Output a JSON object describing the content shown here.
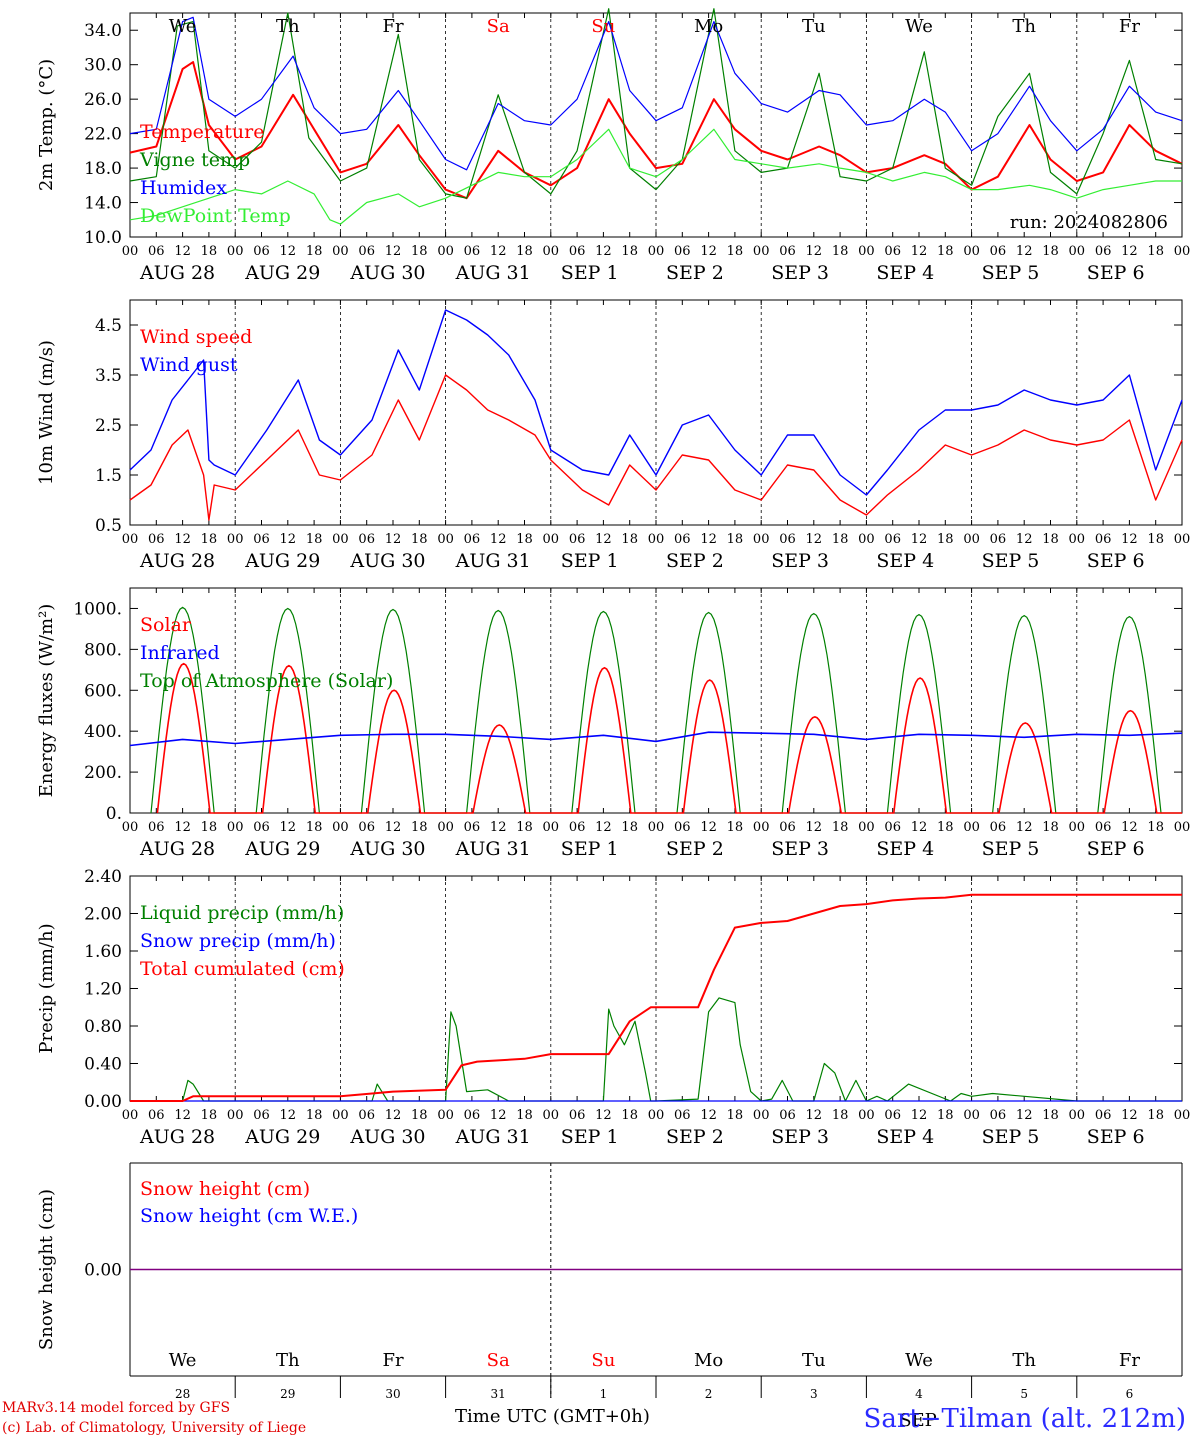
{
  "days": {
    "weekdays": [
      "We",
      "Th",
      "Fr",
      "Sa",
      "Su",
      "Mo",
      "Tu",
      "We",
      "Th",
      "Fr"
    ],
    "weekend_flags": [
      false,
      false,
      false,
      true,
      true,
      false,
      false,
      false,
      false,
      false
    ],
    "dates": [
      "AUG 28",
      "AUG 29",
      "AUG 30",
      "AUG 31",
      "SEP  1",
      "SEP  2",
      "SEP  3",
      "SEP  4",
      "SEP  5",
      "SEP  6"
    ],
    "hour_ticks": [
      "00",
      "06",
      "12",
      "18"
    ],
    "end_hour": "00",
    "day_numbers": [
      "28",
      "29",
      "30",
      "31",
      "1",
      "2",
      "3",
      "4",
      "5",
      "6"
    ],
    "month_label": "SEP"
  },
  "colors": {
    "red": "#ff0000",
    "green": "#008000",
    "blue": "#0000ff",
    "lightgreen": "#33ee33",
    "purple": "#800080",
    "weekend": "#ff0000"
  },
  "chart_data": [
    {
      "type": "line",
      "ylabel": "2m Temp. (°C)",
      "ylim": [
        10,
        36
      ],
      "yticks": [
        "10.0",
        "14.0",
        "18.0",
        "22.0",
        "26.0",
        "30.0",
        "34.0"
      ],
      "run_label": "run: 2024082806",
      "x_unit": "days since Aug 28 00 UTC",
      "series": [
        {
          "name": "Temperature",
          "color": "red",
          "x": [
            0,
            0.25,
            0.5,
            0.6,
            0.75,
            1.0,
            1.25,
            1.55,
            1.75,
            2.0,
            2.25,
            2.55,
            2.75,
            3.0,
            3.2,
            3.5,
            3.75,
            4.0,
            4.25,
            4.55,
            4.75,
            5.0,
            5.25,
            5.55,
            5.75,
            6.0,
            6.25,
            6.55,
            6.75,
            7.0,
            7.25,
            7.55,
            7.75,
            8.0,
            8.25,
            8.55,
            8.75,
            9.0,
            9.25,
            9.5,
            9.75,
            10.0
          ],
          "values": [
            19.8,
            20.5,
            29.5,
            30.3,
            23.0,
            19.0,
            20.5,
            26.5,
            22.5,
            17.5,
            18.5,
            23.0,
            19.5,
            15.5,
            14.5,
            20.0,
            17.5,
            16.0,
            18.0,
            26.0,
            22.0,
            18.0,
            18.5,
            26.0,
            22.5,
            20.0,
            19.0,
            20.5,
            19.5,
            17.5,
            18.0,
            19.5,
            18.5,
            15.5,
            17.0,
            23.0,
            19.0,
            16.5,
            17.5,
            23.0,
            20.0,
            18.5
          ]
        },
        {
          "name": "Vigne temp",
          "color": "green",
          "x": [
            0,
            0.25,
            0.45,
            0.6,
            0.75,
            1.0,
            1.25,
            1.5,
            1.7,
            2.0,
            2.25,
            2.55,
            2.75,
            3.0,
            3.2,
            3.5,
            3.75,
            4.0,
            4.25,
            4.55,
            4.75,
            5.0,
            5.25,
            5.55,
            5.75,
            6.0,
            6.25,
            6.55,
            6.75,
            7.0,
            7.25,
            7.55,
            7.75,
            8.0,
            8.25,
            8.55,
            8.75,
            9.0,
            9.25,
            9.5,
            9.75,
            10.0
          ],
          "values": [
            16.5,
            17.0,
            34.5,
            35.0,
            20.0,
            18.0,
            21.0,
            36.0,
            21.5,
            16.5,
            18.0,
            33.5,
            19.0,
            15.0,
            14.5,
            26.5,
            17.5,
            15.0,
            20.0,
            36.5,
            18.0,
            15.5,
            19.0,
            36.5,
            20.0,
            17.5,
            18.0,
            29.0,
            17.0,
            16.5,
            18.0,
            31.5,
            18.0,
            16.0,
            24.0,
            29.0,
            17.5,
            15.0,
            22.0,
            30.5,
            19.0,
            18.5
          ]
        },
        {
          "name": "Humidex",
          "color": "blue",
          "x": [
            0,
            0.25,
            0.5,
            0.6,
            0.75,
            1.0,
            1.25,
            1.55,
            1.75,
            2.0,
            2.25,
            2.55,
            2.75,
            3.0,
            3.2,
            3.5,
            3.75,
            4.0,
            4.25,
            4.55,
            4.75,
            5.0,
            5.25,
            5.55,
            5.75,
            6.0,
            6.25,
            6.55,
            6.75,
            7.0,
            7.25,
            7.55,
            7.75,
            8.0,
            8.25,
            8.55,
            8.75,
            9.0,
            9.25,
            9.5,
            9.75,
            10.0
          ],
          "values": [
            22.0,
            22.5,
            35.0,
            35.5,
            26.0,
            24.0,
            26.0,
            31.0,
            25.0,
            22.0,
            22.5,
            27.0,
            23.5,
            19.0,
            17.8,
            25.5,
            23.5,
            23.0,
            26.0,
            35.0,
            27.0,
            23.5,
            25.0,
            35.0,
            29.0,
            25.5,
            24.5,
            27.0,
            26.5,
            23.0,
            23.5,
            26.0,
            24.5,
            20.0,
            22.0,
            27.5,
            23.5,
            20.0,
            22.5,
            27.5,
            24.5,
            23.5
          ]
        },
        {
          "name": "DewPoint Temp",
          "color": "lightgreen",
          "x": [
            0,
            0.25,
            0.5,
            0.75,
            1.0,
            1.25,
            1.5,
            1.75,
            1.9,
            2.0,
            2.25,
            2.55,
            2.75,
            3.0,
            3.25,
            3.5,
            3.75,
            4.0,
            4.25,
            4.55,
            4.75,
            5.0,
            5.25,
            5.55,
            5.75,
            6.0,
            6.25,
            6.55,
            6.75,
            7.0,
            7.25,
            7.55,
            7.75,
            8.0,
            8.25,
            8.55,
            8.75,
            9.0,
            9.25,
            9.5,
            9.75,
            10.0
          ],
          "values": [
            12.0,
            12.5,
            13.5,
            14.5,
            15.5,
            15.0,
            16.5,
            15.0,
            12.0,
            11.5,
            14.0,
            15.0,
            13.5,
            14.5,
            16.0,
            17.5,
            17.0,
            17.0,
            19.0,
            22.5,
            18.0,
            17.0,
            19.0,
            22.5,
            19.0,
            18.5,
            18.0,
            18.5,
            18.0,
            17.5,
            16.5,
            17.5,
            17.0,
            15.5,
            15.5,
            16.0,
            15.5,
            14.5,
            15.5,
            16.0,
            16.5,
            16.5
          ]
        }
      ]
    },
    {
      "type": "line",
      "ylabel": "10m Wind (m/s)",
      "ylim": [
        0.5,
        5.0
      ],
      "yticks": [
        "0.5",
        "1.5",
        "2.5",
        "3.5",
        "4.5"
      ],
      "x_unit": "days since Aug 28 00 UTC",
      "series": [
        {
          "name": "Wind speed",
          "color": "red",
          "x": [
            0,
            0.2,
            0.4,
            0.55,
            0.7,
            0.75,
            0.8,
            1.0,
            1.3,
            1.6,
            1.8,
            2.0,
            2.3,
            2.55,
            2.75,
            3.0,
            3.2,
            3.4,
            3.6,
            3.85,
            4.0,
            4.3,
            4.55,
            4.75,
            5.0,
            5.25,
            5.5,
            5.75,
            6.0,
            6.25,
            6.5,
            6.75,
            7.0,
            7.2,
            7.5,
            7.75,
            8.0,
            8.25,
            8.5,
            8.75,
            9.0,
            9.25,
            9.5,
            9.75,
            10.0
          ],
          "values": [
            1.0,
            1.3,
            2.1,
            2.4,
            1.5,
            0.6,
            1.3,
            1.2,
            1.8,
            2.4,
            1.5,
            1.4,
            1.9,
            3.0,
            2.2,
            3.5,
            3.2,
            2.8,
            2.6,
            2.3,
            1.8,
            1.2,
            0.9,
            1.7,
            1.2,
            1.9,
            1.8,
            1.2,
            1.0,
            1.7,
            1.6,
            1.0,
            0.7,
            1.1,
            1.6,
            2.1,
            1.9,
            2.1,
            2.4,
            2.2,
            2.1,
            2.2,
            2.6,
            1.0,
            2.2
          ]
        },
        {
          "name": "Wind gust",
          "color": "blue",
          "x": [
            0,
            0.2,
            0.4,
            0.55,
            0.7,
            0.75,
            0.8,
            1.0,
            1.3,
            1.6,
            1.8,
            2.0,
            2.3,
            2.55,
            2.75,
            3.0,
            3.2,
            3.4,
            3.6,
            3.85,
            4.0,
            4.3,
            4.55,
            4.75,
            5.0,
            5.25,
            5.5,
            5.75,
            6.0,
            6.25,
            6.5,
            6.75,
            7.0,
            7.2,
            7.5,
            7.75,
            8.0,
            8.25,
            8.5,
            8.75,
            9.0,
            9.25,
            9.5,
            9.75,
            10.0
          ],
          "values": [
            1.6,
            2.0,
            3.0,
            3.4,
            3.8,
            1.8,
            1.7,
            1.5,
            2.4,
            3.4,
            2.2,
            1.9,
            2.6,
            4.0,
            3.2,
            4.8,
            4.6,
            4.3,
            3.9,
            3.0,
            2.0,
            1.6,
            1.5,
            2.3,
            1.5,
            2.5,
            2.7,
            2.0,
            1.5,
            2.3,
            2.3,
            1.5,
            1.1,
            1.6,
            2.4,
            2.8,
            2.8,
            2.9,
            3.2,
            3.0,
            2.9,
            3.0,
            3.5,
            1.6,
            3.0
          ]
        }
      ]
    },
    {
      "type": "line",
      "ylabel": "Energy fluxes (W/m²)",
      "ylim": [
        0,
        1100
      ],
      "yticks": [
        "0.",
        "200.",
        "400.",
        "600.",
        "800.",
        "1000."
      ],
      "x_unit": "days since Aug 28 00 UTC",
      "series": [
        {
          "name": "Solar",
          "color": "red",
          "peaks": [
            730,
            720,
            600,
            430,
            710,
            650,
            470,
            660,
            440,
            500
          ]
        },
        {
          "name": "Infrared",
          "color": "blue",
          "x": [
            0,
            0.5,
            1.0,
            1.5,
            2.0,
            2.5,
            3.0,
            3.5,
            4.0,
            4.5,
            5.0,
            5.5,
            6.0,
            6.5,
            7.0,
            7.5,
            8.0,
            8.5,
            9.0,
            9.5,
            10.0
          ],
          "values": [
            330,
            360,
            340,
            360,
            380,
            385,
            385,
            375,
            360,
            380,
            350,
            395,
            390,
            385,
            360,
            385,
            380,
            370,
            385,
            380,
            390
          ]
        },
        {
          "name": "Top of Atmosphere (Solar)",
          "color": "green",
          "peaks": [
            1005,
            1000,
            995,
            990,
            985,
            980,
            975,
            970,
            965,
            960
          ]
        }
      ]
    },
    {
      "type": "line",
      "ylabel": "Precip (mm/h)",
      "ylim": [
        0,
        2.4
      ],
      "yticks": [
        "0.00",
        "0.40",
        "0.80",
        "1.20",
        "1.60",
        "2.00",
        "2.40"
      ],
      "x_unit": "days since Aug 28 00 UTC",
      "series": [
        {
          "name": "Liquid precip (mm/h)",
          "color": "green",
          "x": [
            0,
            0.5,
            0.55,
            0.6,
            0.7,
            2.3,
            2.35,
            2.45,
            3.0,
            3.05,
            3.1,
            3.2,
            3.4,
            3.6,
            4.0,
            4.5,
            4.55,
            4.6,
            4.7,
            4.8,
            4.9,
            4.95,
            5.0,
            5.4,
            5.5,
            5.6,
            5.75,
            5.8,
            5.9,
            6.0,
            6.1,
            6.2,
            6.3,
            6.5,
            6.6,
            6.7,
            6.8,
            6.9,
            7.0,
            7.1,
            7.2,
            7.4,
            7.8,
            7.9,
            8.0,
            8.2,
            9.0,
            10.0
          ],
          "values": [
            0,
            0,
            0.22,
            0.18,
            0,
            0,
            0.18,
            0,
            0,
            0.95,
            0.8,
            0.1,
            0.12,
            0,
            0,
            0,
            0.98,
            0.8,
            0.6,
            0.85,
            0.3,
            0,
            0,
            0.02,
            0.95,
            1.1,
            1.05,
            0.6,
            0.1,
            0,
            0.02,
            0.22,
            0,
            0,
            0.4,
            0.3,
            0,
            0.22,
            0,
            0.05,
            0,
            0.18,
            0,
            0.08,
            0.05,
            0.08,
            0,
            0
          ]
        },
        {
          "name": "Snow precip (mm/h)",
          "color": "blue",
          "x": [
            0,
            10
          ],
          "values": [
            0,
            0
          ]
        },
        {
          "name": "Total cumulated (cm)",
          "color": "red",
          "x": [
            0,
            0.5,
            0.6,
            2.0,
            2.3,
            2.5,
            3.0,
            3.15,
            3.3,
            3.75,
            4.0,
            4.55,
            4.75,
            4.95,
            5.0,
            5.4,
            5.55,
            5.75,
            6.0,
            6.25,
            6.5,
            6.75,
            7.0,
            7.25,
            7.5,
            7.75,
            8.0,
            8.5,
            9.0,
            10.0
          ],
          "values": [
            0,
            0,
            0.05,
            0.05,
            0.08,
            0.1,
            0.12,
            0.38,
            0.42,
            0.45,
            0.5,
            0.5,
            0.85,
            1.0,
            1.0,
            1.0,
            1.4,
            1.85,
            1.9,
            1.92,
            2.0,
            2.08,
            2.1,
            2.14,
            2.16,
            2.17,
            2.2,
            2.2,
            2.2,
            2.2
          ]
        }
      ]
    },
    {
      "type": "line",
      "ylabel": "Snow height (cm)",
      "ylim": [
        -1,
        1
      ],
      "yticks": [
        "0.00"
      ],
      "x_unit": "days since Aug 28 00 UTC",
      "series": [
        {
          "name": "Snow height (cm)",
          "color": "red",
          "x": [
            0,
            10
          ],
          "values": [
            0,
            0
          ]
        },
        {
          "name": "Snow height (cm W.E.)",
          "color": "blue",
          "x": [
            0,
            10
          ],
          "values": [
            0,
            0
          ]
        }
      ]
    }
  ],
  "footer": {
    "credit_line1": "MARv3.14 model forced by GFS",
    "credit_line2": "(c) Lab. of Climatology, University of Liege",
    "xlabel": "Time UTC (GMT+0h)",
    "station": "Sart−Tilman (alt. 212m)"
  }
}
